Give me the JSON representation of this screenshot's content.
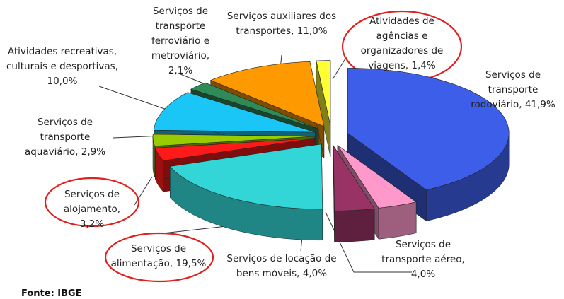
{
  "chart_data": {
    "type": "pie",
    "categories": [
      "Serviços de transporte rodoviário",
      "Serviços de transporte aéreo",
      "Serviços de locação de bens móveis",
      "Serviços de alimentação",
      "Serviços de alojamento",
      "Serviços de transporte aquaviário",
      "Atividades recreativas, culturais e desportivas",
      "Serviços de transporte ferroviário e metroviário",
      "Serviços auxiliares dos transportes",
      "Atividades de agências e organizadores de viagens"
    ],
    "values": [
      41.9,
      4.0,
      4.0,
      19.5,
      3.2,
      2.9,
      10.0,
      2.1,
      11.0,
      1.4
    ],
    "value_labels": [
      "41,9%",
      "4,0%",
      "4,0%",
      "19,5%",
      "3,2%",
      "2,9%",
      "10,0%",
      "2,1%",
      "11,0%",
      "1,4%"
    ],
    "colors": [
      "#3d5ee8",
      "#ff99cc",
      "#993366",
      "#33d6d6",
      "#ff1a1a",
      "#99cc00",
      "#19c6f5",
      "#2e8b57",
      "#ff9900",
      "#ffff33"
    ],
    "source": "Fonte: IBGE"
  }
}
